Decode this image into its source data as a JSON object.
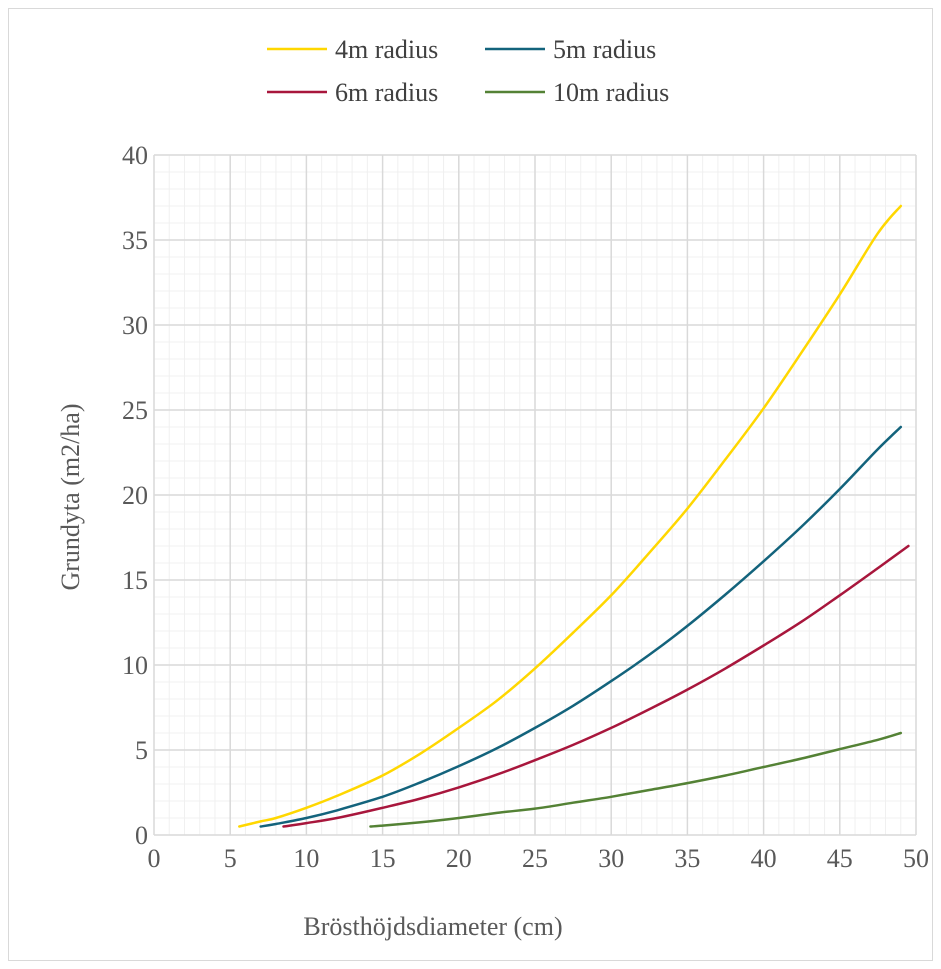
{
  "chart_data": {
    "type": "line",
    "title": "",
    "xlabel": "Brösthöjdsdiameter (cm)",
    "ylabel": "Grundyta (m2/ha)",
    "xlim": [
      0,
      50
    ],
    "ylim": [
      0,
      40
    ],
    "xticks": [
      "0",
      "5",
      "10",
      "15",
      "20",
      "25",
      "30",
      "35",
      "40",
      "45",
      "50"
    ],
    "yticks": [
      "0",
      "5",
      "10",
      "15",
      "20",
      "25",
      "30",
      "35",
      "40"
    ],
    "grid": true,
    "minor_grid": true,
    "legend_position": "top",
    "series": [
      {
        "name": "4m radius",
        "color": "#ffd700",
        "x": [
          5.6,
          7,
          8,
          10,
          12,
          15,
          17.5,
          20,
          22.5,
          25,
          27.5,
          30,
          32.5,
          35,
          37.5,
          40,
          42.5,
          45,
          47.5,
          49
        ],
        "y": [
          0.5,
          0.8,
          1.0,
          1.6,
          2.3,
          3.5,
          4.8,
          6.3,
          7.9,
          9.8,
          11.9,
          14.1,
          16.6,
          19.2,
          22.1,
          25.1,
          28.4,
          31.8,
          35.4,
          37.0
        ]
      },
      {
        "name": "5m radius",
        "color": "#13637c",
        "x": [
          7,
          8,
          10,
          12,
          15,
          17.5,
          20,
          22.5,
          25,
          27.5,
          30,
          32.5,
          35,
          37.5,
          40,
          42.5,
          45,
          47.5,
          49
        ],
        "y": [
          0.5,
          0.65,
          1.0,
          1.45,
          2.25,
          3.1,
          4.05,
          5.1,
          6.3,
          7.6,
          9.05,
          10.6,
          12.3,
          14.15,
          16.1,
          18.15,
          20.35,
          22.7,
          24.0
        ]
      },
      {
        "name": "6m radius",
        "color": "#a8163c",
        "x": [
          8.5,
          10,
          12,
          15,
          17.5,
          20,
          22.5,
          25,
          27.5,
          30,
          32.5,
          35,
          37.5,
          40,
          42.5,
          45,
          47.5,
          49.5
        ],
        "y": [
          0.5,
          0.7,
          1.0,
          1.6,
          2.15,
          2.8,
          3.55,
          4.4,
          5.3,
          6.3,
          7.4,
          8.55,
          9.8,
          11.15,
          12.55,
          14.1,
          15.7,
          17.0
        ]
      },
      {
        "name": "10m radius",
        "color": "#548235",
        "x": [
          14.2,
          15,
          17.5,
          20,
          22.5,
          25,
          27.5,
          30,
          32.5,
          35,
          37.5,
          40,
          42.5,
          45,
          47.5,
          49
        ],
        "y": [
          0.5,
          0.55,
          0.75,
          1.0,
          1.3,
          1.55,
          1.9,
          2.25,
          2.65,
          3.05,
          3.5,
          4.0,
          4.5,
          5.05,
          5.6,
          6.0
        ]
      }
    ]
  }
}
